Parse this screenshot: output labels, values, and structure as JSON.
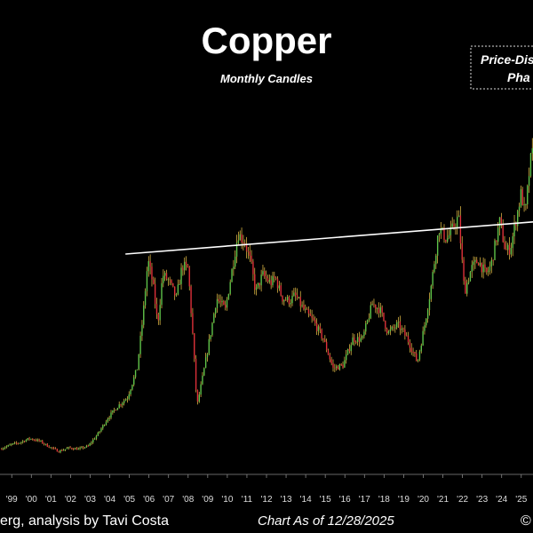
{
  "chart_data": {
    "type": "candlestick",
    "title": "Copper",
    "subtitle": "Monthly Candles",
    "annotation": [
      "Price-Dis",
      "Pha"
    ],
    "footer_source": "erg, analysis by Tavi Costa",
    "footer_date": "Chart As of 12/28/2025",
    "footer_right": "©",
    "x_ticks": [
      "'99",
      "'00",
      "'01",
      "'02",
      "'03",
      "'04",
      "'05",
      "'06",
      "'07",
      "'08",
      "'09",
      "'10",
      "'11",
      "'12",
      "'13",
      "'14",
      "'15",
      "'16",
      "'17",
      "'18",
      "'19",
      "'20",
      "'21",
      "'22",
      "'23",
      "'24",
      "'25"
    ],
    "x_range": [
      1998.9,
      2026.1
    ],
    "y_range": [
      0.5,
      6.6
    ],
    "grid": false,
    "resistance_line": {
      "start": [
        2005.3,
        4.05
      ],
      "end": [
        2026.1,
        4.6
      ]
    },
    "colors": {
      "up": "#5fc44a",
      "down": "#e0303a",
      "wick": "#f2c84b",
      "line": "#ffffff"
    },
    "anchors": [
      [
        1998.9,
        0.72
      ],
      [
        1999.5,
        0.8
      ],
      [
        1999.9,
        0.83
      ],
      [
        2000.4,
        0.9
      ],
      [
        2000.9,
        0.86
      ],
      [
        2001.4,
        0.76
      ],
      [
        2001.9,
        0.68
      ],
      [
        2002.4,
        0.74
      ],
      [
        2002.9,
        0.72
      ],
      [
        2003.4,
        0.77
      ],
      [
        2003.9,
        0.98
      ],
      [
        2004.4,
        1.25
      ],
      [
        2004.9,
        1.45
      ],
      [
        2005.4,
        1.6
      ],
      [
        2005.9,
        2.1
      ],
      [
        2006.2,
        3.0
      ],
      [
        2006.45,
        3.95
      ],
      [
        2006.7,
        3.55
      ],
      [
        2006.95,
        2.85
      ],
      [
        2007.2,
        3.7
      ],
      [
        2007.5,
        3.6
      ],
      [
        2007.9,
        3.3
      ],
      [
        2008.2,
        3.85
      ],
      [
        2008.5,
        3.8
      ],
      [
        2008.75,
        2.6
      ],
      [
        2008.95,
        1.45
      ],
      [
        2009.3,
        2.05
      ],
      [
        2009.7,
        2.8
      ],
      [
        2009.95,
        3.3
      ],
      [
        2010.4,
        3.1
      ],
      [
        2010.8,
        3.9
      ],
      [
        2011.05,
        4.4
      ],
      [
        2011.4,
        4.25
      ],
      [
        2011.7,
        3.9
      ],
      [
        2011.95,
        3.4
      ],
      [
        2012.3,
        3.7
      ],
      [
        2012.7,
        3.55
      ],
      [
        2012.95,
        3.65
      ],
      [
        2013.3,
        3.3
      ],
      [
        2013.7,
        3.25
      ],
      [
        2013.95,
        3.35
      ],
      [
        2014.4,
        3.1
      ],
      [
        2014.9,
        2.9
      ],
      [
        2015.4,
        2.6
      ],
      [
        2015.9,
        2.1
      ],
      [
        2016.4,
        2.15
      ],
      [
        2016.9,
        2.6
      ],
      [
        2017.4,
        2.6
      ],
      [
        2017.9,
        3.2
      ],
      [
        2018.3,
        3.1
      ],
      [
        2018.7,
        2.7
      ],
      [
        2019.2,
        2.85
      ],
      [
        2019.7,
        2.6
      ],
      [
        2020.2,
        2.2
      ],
      [
        2020.6,
        2.9
      ],
      [
        2020.9,
        3.5
      ],
      [
        2021.3,
        4.5
      ],
      [
        2021.7,
        4.3
      ],
      [
        2021.95,
        4.45
      ],
      [
        2022.3,
        4.7
      ],
      [
        2022.6,
        3.4
      ],
      [
        2022.95,
        3.8
      ],
      [
        2023.3,
        3.95
      ],
      [
        2023.7,
        3.7
      ],
      [
        2023.95,
        3.85
      ],
      [
        2024.4,
        4.6
      ],
      [
        2024.7,
        4.1
      ],
      [
        2024.95,
        4.15
      ],
      [
        2025.3,
        4.75
      ],
      [
        2025.5,
        5.1
      ],
      [
        2025.7,
        4.7
      ],
      [
        2025.95,
        5.6
      ],
      [
        2026.1,
        5.8
      ]
    ]
  }
}
